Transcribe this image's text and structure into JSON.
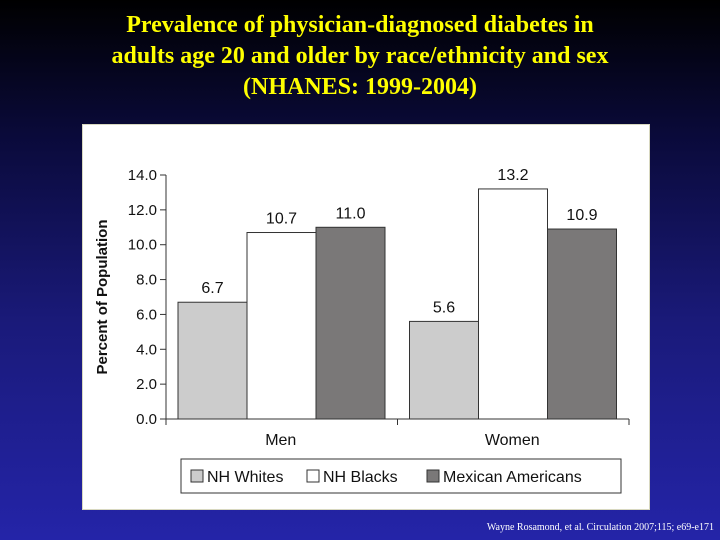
{
  "slide": {
    "title_lines": [
      "Prevalence  of  physician-diagnosed diabetes  in",
      "adults age 20 and older by race/ethnicity and sex",
      "(NHANES: 1999-2004)"
    ],
    "citation": "Wayne Rosamond, et al. Circulation  2007;115; e69-e171"
  },
  "colors": {
    "title": "#ffff00",
    "background_top": "#000000",
    "background_bottom": "#2424a8"
  },
  "chart_data": {
    "type": "bar",
    "title": "",
    "xlabel": "",
    "ylabel": "Percent of Population",
    "categories": [
      "Men",
      "Women"
    ],
    "series": [
      {
        "name": "NH Whites",
        "values": [
          6.7,
          5.6
        ],
        "labels": [
          "6.7",
          "5.6"
        ],
        "color": "#cccccc"
      },
      {
        "name": "NH  Blacks",
        "values": [
          10.7,
          13.2
        ],
        "labels": [
          "10.7",
          "13.2"
        ],
        "color": "#ffffff"
      },
      {
        "name": "Mexican Americans",
        "values": [
          11.0,
          10.9
        ],
        "labels": [
          "11.0",
          "10.9"
        ],
        "color": "#7a7878"
      }
    ],
    "ylim": [
      0,
      14
    ],
    "yticks": [
      "0.0",
      "2.0",
      "4.0",
      "6.0",
      "8.0",
      "10.0",
      "12.0",
      "14.0"
    ],
    "grid": false,
    "legend_position": "bottom"
  }
}
